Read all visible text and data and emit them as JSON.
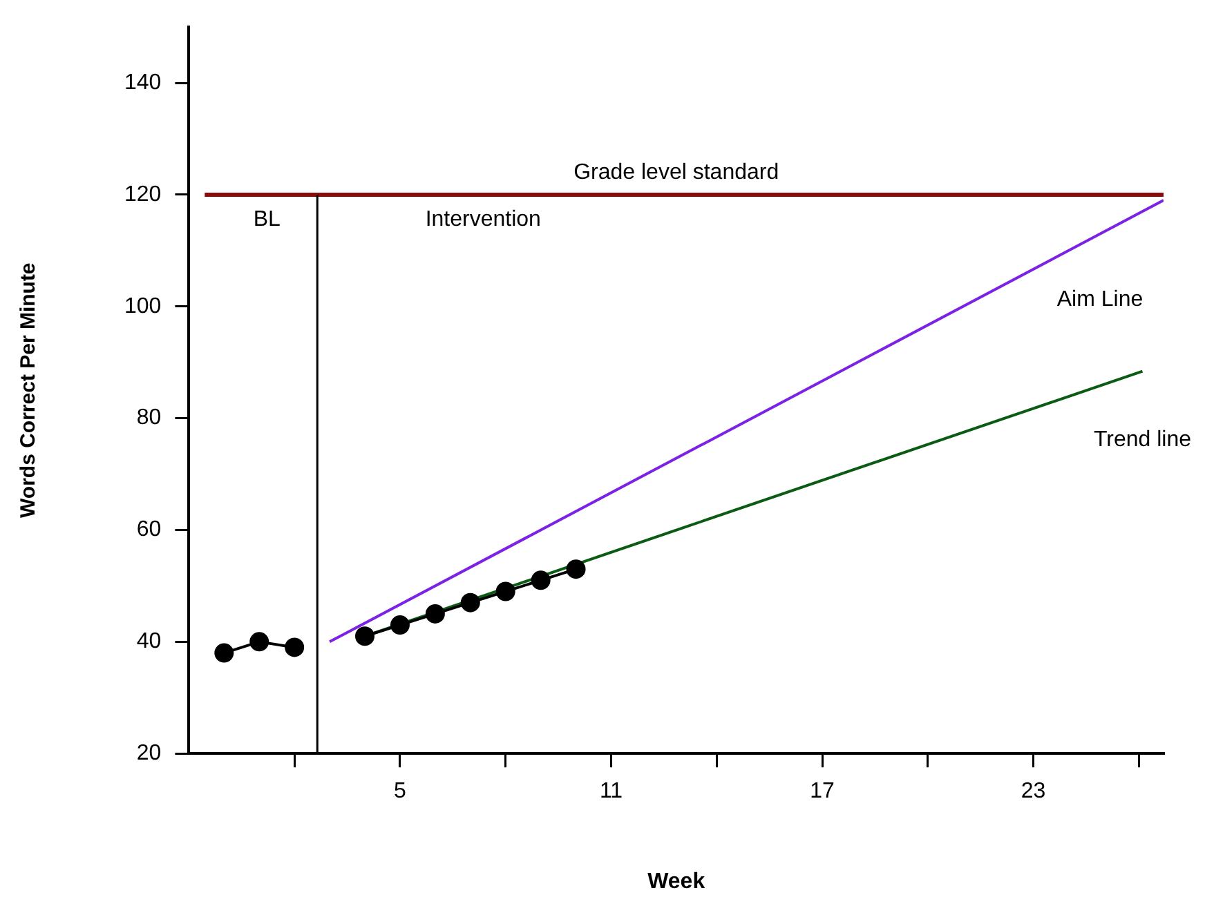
{
  "chart_data": {
    "type": "line",
    "xlabel": "Week",
    "ylabel": "Words Correct Per Minute",
    "xlim": [
      -1,
      26.7
    ],
    "ylim": [
      20,
      150
    ],
    "xticks": [
      {
        "value": 2,
        "label": null
      },
      5,
      {
        "value": 8,
        "label": null
      },
      11,
      {
        "value": 14,
        "label": null
      },
      17,
      {
        "value": 20,
        "label": null
      },
      23,
      {
        "value": 26,
        "label": null
      }
    ],
    "yticks": [
      20,
      40,
      60,
      80,
      100,
      120,
      140
    ],
    "grid": false,
    "legend": false,
    "series": [
      {
        "color": "#000000",
        "marker": "circle",
        "x": [
          0,
          1,
          2
        ],
        "values": [
          38,
          40,
          39
        ]
      },
      {
        "color": "#000000",
        "marker": "circle",
        "x": [
          4,
          5,
          6,
          7,
          8,
          9,
          10
        ],
        "values": [
          41,
          43,
          45,
          47,
          49,
          51,
          53
        ]
      },
      {
        "name": "Aim Line",
        "color": "#7b22e6",
        "marker": "none",
        "x": [
          3,
          26.7
        ],
        "values": [
          40,
          119
        ]
      },
      {
        "name": "Trend line",
        "color": "#0a5c14",
        "marker": "none",
        "x": [
          4,
          26.1
        ],
        "values": [
          41,
          88.4
        ]
      }
    ],
    "ref_lines": [
      {
        "axis": "y",
        "value": 120,
        "label": "Grade level standard",
        "color": "#8b0a0a"
      },
      {
        "axis": "x",
        "value": 2.65,
        "color": "#000000"
      }
    ],
    "annotations": [
      "BL",
      "Intervention"
    ]
  }
}
